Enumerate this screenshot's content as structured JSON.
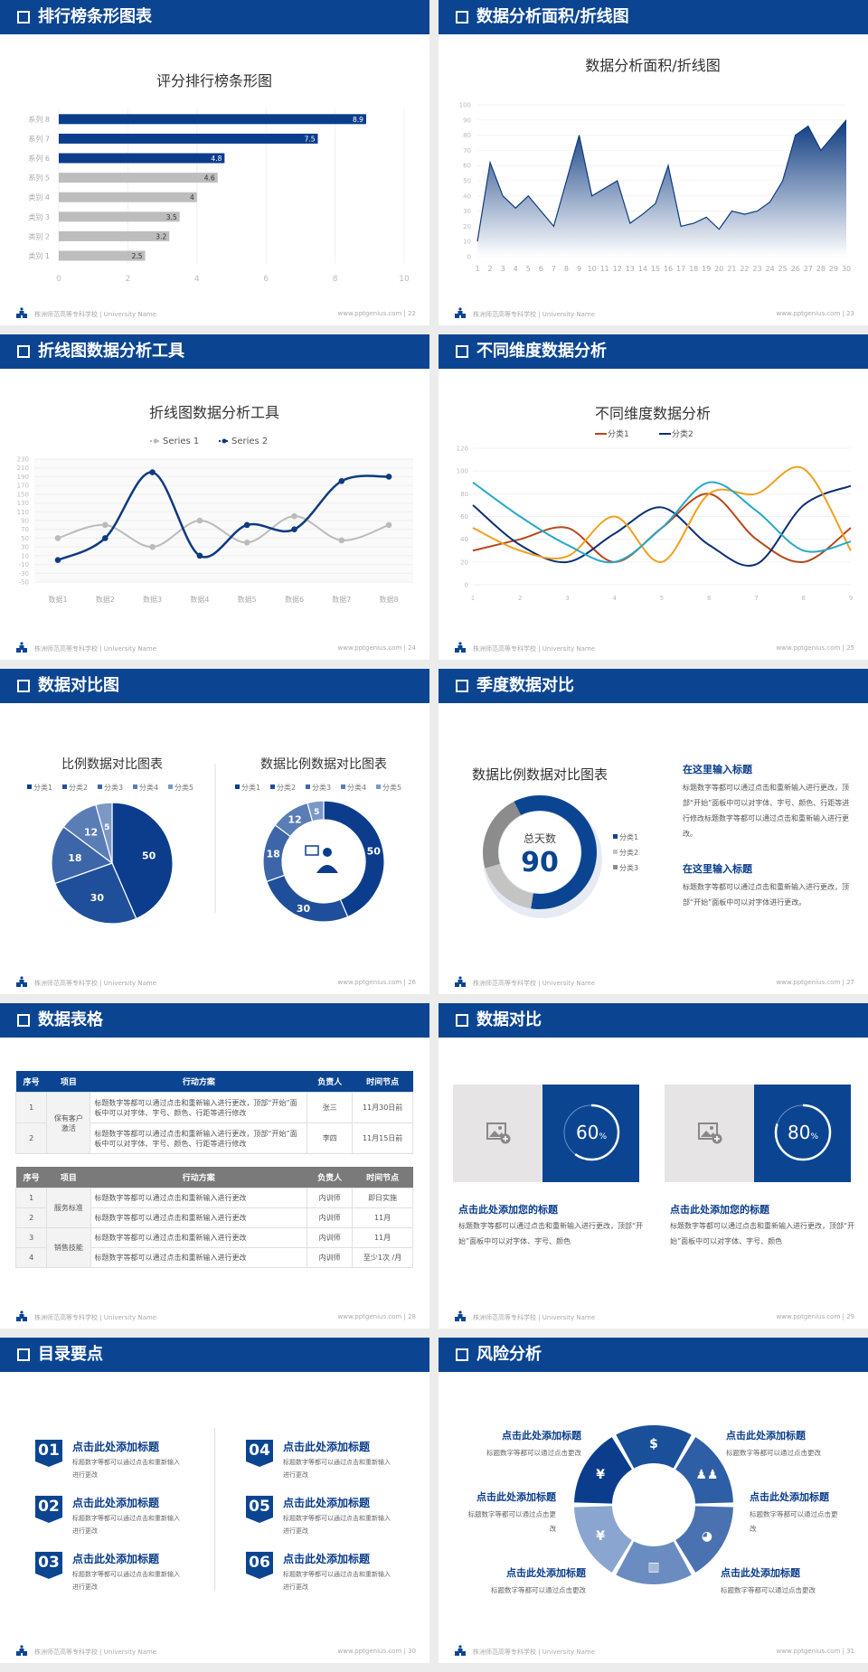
{
  "footer": {
    "school": "株洲师范高等专科学校 | University Name",
    "site": "www.pptgenius.com"
  },
  "colors": {
    "header_blue": "#0b4592",
    "dark_blue": "#0d3a80",
    "gray_bar": "#bdbdbd"
  },
  "slides": [
    {
      "title": "排行榜条形图表",
      "page": "22"
    },
    {
      "title": "数据分析面积/折线图",
      "page": "23"
    },
    {
      "title": "折线图数据分析工具",
      "page": "24"
    },
    {
      "title": "不同维度数据分析",
      "page": "25"
    },
    {
      "title": "数据对比图",
      "page": "26"
    },
    {
      "title": "季度数据对比",
      "page": "27"
    },
    {
      "title": "数据表格",
      "page": "28"
    },
    {
      "title": "数据对比",
      "page": "29"
    },
    {
      "title": "目录要点",
      "page": "30"
    },
    {
      "title": "风险分析",
      "page": "31"
    }
  ],
  "chart_data": [
    {
      "type": "bar",
      "orientation": "horizontal",
      "title": "评分排行榜条形图",
      "categories": [
        "类别 1",
        "类别 2",
        "类别 3",
        "类别 4",
        "系列 5",
        "系列 6",
        "系列 7",
        "系列 8"
      ],
      "values": [
        2.5,
        3.2,
        3.5,
        4,
        4.6,
        4.8,
        7.5,
        8.9
      ],
      "value_labels": [
        "2.5",
        "3.2",
        "3.5",
        "4",
        "4.6",
        "4.8",
        "7.5",
        "8.9"
      ],
      "highlighted": [
        "系列 6",
        "系列 7",
        "系列 8"
      ],
      "highlight_color": "#0b3d8c",
      "base_color": "#bdbdbd",
      "xlim": [
        0,
        10
      ],
      "xticks": [
        "0",
        "2",
        "4",
        "6",
        "8",
        "10"
      ],
      "grid": true
    },
    {
      "type": "area",
      "title": "数据分析面积/折线图",
      "x": [
        "1",
        "2",
        "3",
        "4",
        "5",
        "6",
        "7",
        "8",
        "9",
        "10",
        "11",
        "12",
        "13",
        "14",
        "15",
        "16",
        "17",
        "18",
        "19",
        "20",
        "21",
        "22",
        "23",
        "24",
        "25",
        "26",
        "27",
        "28",
        "29",
        "30"
      ],
      "values": [
        10,
        62,
        40,
        32,
        40,
        30,
        20,
        50,
        80,
        40,
        45,
        50,
        22,
        28,
        35,
        60,
        20,
        22,
        26,
        18,
        30,
        28,
        30,
        36,
        50,
        80,
        86,
        70,
        80,
        90
      ],
      "ylim": [
        0,
        100
      ],
      "yticks": [
        "0",
        "10",
        "20",
        "30",
        "40",
        "50",
        "60",
        "70",
        "80",
        "90",
        "100"
      ],
      "color": "#0d3a80",
      "grid": true
    },
    {
      "type": "line",
      "smooth": true,
      "title": "折线图数据分析工具",
      "categories": [
        "数据1",
        "数据2",
        "数据3",
        "数据4",
        "数据5",
        "数据6",
        "数据7",
        "数据8"
      ],
      "series": [
        {
          "name": "Series 1",
          "values": [
            50,
            80,
            30,
            90,
            40,
            100,
            45,
            80
          ],
          "color": "#bbbbbb"
        },
        {
          "name": "Series 2",
          "values": [
            0,
            50,
            200,
            10,
            80,
            70,
            180,
            190
          ],
          "color": "#0d3a80"
        }
      ],
      "ylim": [
        -50,
        230
      ],
      "yticks": [
        "-50",
        "-30",
        "-10",
        "10",
        "30",
        "50",
        "70",
        "90",
        "110",
        "130",
        "150",
        "170",
        "190",
        "210",
        "230"
      ],
      "legend": "top",
      "grid": true
    },
    {
      "type": "line",
      "smooth": true,
      "title": "不同维度数据分析",
      "x": [
        "1",
        "2",
        "3",
        "4",
        "5",
        "6",
        "7",
        "8",
        "9"
      ],
      "series": [
        {
          "name": "分类1",
          "values": [
            30,
            40,
            50,
            20,
            50,
            80,
            40,
            20,
            50
          ],
          "color": "#b5471a"
        },
        {
          "name": "分类2",
          "values": [
            70,
            35,
            20,
            45,
            68,
            35,
            18,
            70,
            87
          ],
          "color": "#0d2f74"
        },
        {
          "values": [
            50,
            30,
            25,
            60,
            20,
            80,
            80,
            102,
            30
          ],
          "color": "#f0a020"
        },
        {
          "values": [
            90,
            60,
            35,
            20,
            50,
            90,
            65,
            30,
            38
          ],
          "color": "#28a8c8"
        }
      ],
      "ylim": [
        0,
        120
      ],
      "yticks": [
        "0",
        "20",
        "40",
        "60",
        "80",
        "100",
        "120"
      ],
      "legend": "top",
      "grid": true
    },
    {
      "type": "pie",
      "title": "比例数据对比图表",
      "categories": [
        "分类1",
        "分类2",
        "分类3",
        "分类4",
        "分类5"
      ],
      "values": [
        50,
        30,
        18,
        12,
        5
      ],
      "colors": [
        "#0b3d8c",
        "#1f4f9b",
        "#3c66a8",
        "#5a7db6",
        "#7c99c6"
      ],
      "legend": "top"
    },
    {
      "type": "pie",
      "donut": true,
      "title": "数据比例数据对比图表",
      "categories": [
        "分类1",
        "分类2",
        "分类3",
        "分类4",
        "分类5"
      ],
      "values": [
        50,
        30,
        18,
        12,
        5
      ],
      "colors": [
        "#0b3d8c",
        "#1f4f9b",
        "#3c66a8",
        "#5a7db6",
        "#7c99c6"
      ],
      "center_icon": "presenter-icon",
      "legend": "top"
    },
    {
      "type": "pie",
      "donut": true,
      "title": "数据比例数据对比图表",
      "center_label": "总天数",
      "center_value": "90",
      "categories": [
        "分类1",
        "分类2",
        "分类3"
      ],
      "values": [
        60,
        18,
        22
      ],
      "colors": [
        "#0b4592",
        "#c4c4c4",
        "#8c8c8c"
      ],
      "legend": "right"
    }
  ],
  "quarter": {
    "blocks": [
      {
        "title": "在这里输入标题",
        "text": "标题数字等都可以通过点击和重新输入进行更改，顶部“开始”面板中可以对字体、字号、颜色、行距等进行修改标题数字等都可以通过点击和重新输入进行更改。"
      },
      {
        "title": "在这里输入标题",
        "text": "标题数字等都可以通过点击和重新输入进行更改，顶部“开始”面板中可以对字体进行更改。"
      }
    ]
  },
  "tables": {
    "headers": [
      "序号",
      "项目",
      "行动方案",
      "负责人",
      "时间节点"
    ],
    "table1": {
      "header_color": "#0b4592",
      "groups": [
        {
          "project": "保有客户激活",
          "rows": [
            {
              "no": "1",
              "plan": "标题数字等都可以通过点击和重新输入进行更改，顶部“开始”面板中可以对字体、字号、颜色、行距等进行修改",
              "owner": "张三",
              "time": "11月30日前"
            },
            {
              "no": "2",
              "plan": "标题数字等都可以通过点击和重新输入进行更改，顶部“开始”面板中可以对字体、字号、颜色、行距等进行修改",
              "owner": "李四",
              "time": "11月15日前"
            }
          ]
        }
      ]
    },
    "table2": {
      "header_color": "#7a7a7a",
      "groups": [
        {
          "project": "服务标准",
          "rows": [
            {
              "no": "1",
              "plan": "标题数字等都可以通过点击和重新输入进行更改",
              "owner": "内训师",
              "time": "即日实施"
            },
            {
              "no": "2",
              "plan": "标题数字等都可以通过点击和重新输入进行更改",
              "owner": "内训师",
              "time": "11月"
            }
          ]
        },
        {
          "project": "销售技能",
          "rows": [
            {
              "no": "3",
              "plan": "标题数字等都可以通过点击和重新输入进行更改",
              "owner": "内训师",
              "time": "11月"
            },
            {
              "no": "4",
              "plan": "标题数字等都可以通过点击和重新输入进行更改",
              "owner": "内训师",
              "time": "至少1次 /月"
            }
          ]
        }
      ]
    }
  },
  "compare_cards": [
    {
      "percent": 60,
      "percent_label": "60",
      "unit": "%",
      "title": "点击此处添加您的标题",
      "text": "标题数字等都可以通过点击和重新输入进行更改，顶部“开始”面板中可以对字体、字号、颜色",
      "image_icon": "add-image-icon"
    },
    {
      "percent": 80,
      "percent_label": "80",
      "unit": "%",
      "title": "点击此处添加您的标题",
      "text": "标题数字等都可以通过点击和重新输入进行更改，顶部“开始”面板中可以对字体、字号、颜色",
      "image_icon": "add-image-icon"
    }
  ],
  "toc": [
    {
      "num": "01",
      "title": "点击此处添加标题",
      "text": "标题数字等都可以通过点击和重新输入进行更改"
    },
    {
      "num": "02",
      "title": "点击此处添加标题",
      "text": "标题数字等都可以通过点击和重新输入进行更改"
    },
    {
      "num": "03",
      "title": "点击此处添加标题",
      "text": "标题数字等都可以通过点击和重新输入进行更改"
    },
    {
      "num": "04",
      "title": "点击此处添加标题",
      "text": "标题数字等都可以通过点击和重新输入进行更改"
    },
    {
      "num": "05",
      "title": "点击此处添加标题",
      "text": "标题数字等都可以通过点击和重新输入进行更改"
    },
    {
      "num": "06",
      "title": "点击此处添加标题",
      "text": "标题数字等都可以通过点击和重新输入进行更改"
    }
  ],
  "risk": {
    "items": [
      {
        "title": "点击此处添加标题",
        "text": "标题数字等都可以通过点击更改",
        "icon": "money-bag-icon",
        "glyph": "¥",
        "color": "#0b3d8c"
      },
      {
        "title": "点击此处添加标题",
        "text": "标题数字等都可以通过点击更改",
        "icon": "coins-icon",
        "glyph": "$",
        "color": "#1a4f9a"
      },
      {
        "title": "点击此处添加标题",
        "text": "标题数字等都可以通过点击更改",
        "icon": "people-icon",
        "glyph": "♟♟",
        "color": "#2e5ea5"
      },
      {
        "title": "点击此处添加标题",
        "text": "标题数字等都可以通过点击更改",
        "icon": "pie-chart-icon",
        "glyph": "◕",
        "color": "#4a72b0"
      },
      {
        "title": "点击此处添加标题",
        "text": "标题数字等都可以通过点击更改",
        "icon": "building-icon",
        "glyph": "▥",
        "color": "#6a8cc0"
      },
      {
        "title": "点击此处添加标题",
        "text": "标题数字等都可以通过点击更改",
        "icon": "yen-hand-icon",
        "glyph": "¥",
        "color": "#8aa6d0"
      }
    ]
  }
}
